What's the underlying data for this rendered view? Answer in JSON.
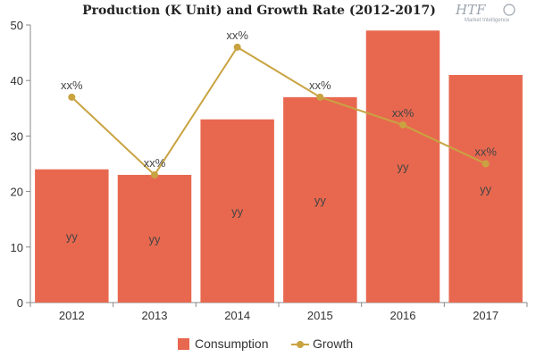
{
  "chart_data": {
    "type": "bar",
    "title": "Production (K Unit) and Growth Rate (2012-2017)",
    "categories": [
      "2012",
      "2013",
      "2014",
      "2015",
      "2016",
      "2017"
    ],
    "ylim": [
      0,
      50
    ],
    "yticks": [
      0,
      10,
      20,
      30,
      40,
      50
    ],
    "xlabel": "",
    "ylabel": "",
    "series": [
      {
        "name": "Consumption",
        "type": "bar",
        "color": "#e8684f",
        "values": [
          24,
          23,
          33,
          37,
          49,
          41
        ],
        "data_labels": [
          "yy",
          "yy",
          "yy",
          "yy",
          "yy",
          "yy"
        ]
      },
      {
        "name": "Growth",
        "type": "line",
        "color": "#c9a341",
        "values": [
          37,
          23,
          46,
          37,
          32,
          25
        ],
        "data_labels": [
          "xx%",
          "xx%",
          "xx%",
          "xx%",
          "xx%",
          "xx%"
        ]
      }
    ],
    "legend_position": "bottom",
    "grid": false
  },
  "logo": {
    "text": "HTF",
    "subtext": "Market Intelligence"
  }
}
